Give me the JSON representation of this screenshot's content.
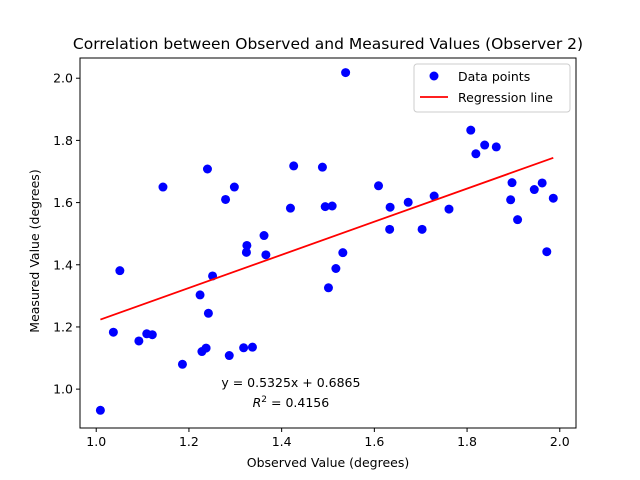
{
  "chart_data": {
    "type": "scatter",
    "title": "Correlation between Observed and Measured Values (Observer 2)",
    "xlabel": "Observed Value (degrees)",
    "ylabel": "Measured Value (degrees)",
    "xlim": [
      0.965,
      2.035
    ],
    "ylim": [
      0.875,
      2.065
    ],
    "xticks": [
      1.0,
      1.2,
      1.4,
      1.6,
      1.8,
      2.0
    ],
    "xtick_labels": [
      "1.0",
      "1.2",
      "1.4",
      "1.6",
      "1.8",
      "2.0"
    ],
    "yticks": [
      1.0,
      1.2,
      1.4,
      1.6,
      1.8,
      2.0
    ],
    "ytick_labels": [
      "1.0",
      "1.2",
      "1.4",
      "1.6",
      "1.8",
      "2.0"
    ],
    "grid": false,
    "legend_position": "top-right",
    "series": [
      {
        "name": "Data points",
        "kind": "scatter",
        "color": "#0000ff",
        "x": [
          1.009,
          1.037,
          1.051,
          1.092,
          1.109,
          1.121,
          1.144,
          1.186,
          1.224,
          1.228,
          1.237,
          1.24,
          1.242,
          1.251,
          1.279,
          1.287,
          1.298,
          1.318,
          1.324,
          1.325,
          1.337,
          1.362,
          1.366,
          1.419,
          1.426,
          1.488,
          1.494,
          1.501,
          1.509,
          1.517,
          1.532,
          1.538,
          1.609,
          1.633,
          1.634,
          1.673,
          1.703,
          1.729,
          1.761,
          1.808,
          1.819,
          1.838,
          1.863,
          1.894,
          1.897,
          1.909,
          1.945,
          1.962,
          1.972,
          1.986
        ],
        "y": [
          0.932,
          1.183,
          1.381,
          1.155,
          1.178,
          1.175,
          1.65,
          1.08,
          1.303,
          1.121,
          1.132,
          1.708,
          1.244,
          1.364,
          1.61,
          1.108,
          1.65,
          1.133,
          1.44,
          1.462,
          1.135,
          1.494,
          1.432,
          1.582,
          1.718,
          1.714,
          1.587,
          1.326,
          1.589,
          1.388,
          1.439,
          2.018,
          1.654,
          1.514,
          1.585,
          1.601,
          1.514,
          1.621,
          1.579,
          1.833,
          1.757,
          1.785,
          1.779,
          1.609,
          1.664,
          1.545,
          1.642,
          1.663,
          1.442,
          1.614
        ]
      },
      {
        "name": "Regression line",
        "kind": "line",
        "color": "#ff0000",
        "slope": 0.5325,
        "intercept": 0.6865,
        "x_range": [
          1.009,
          1.986
        ]
      }
    ],
    "annotations": [
      {
        "text": "y = 0.5325x + 0.6865",
        "x": 1.42,
        "y": 1.02
      },
      {
        "text_prefix": "R",
        "superscript": "2",
        "text_suffix": " = 0.4156",
        "x": 1.42,
        "y": 0.955
      }
    ]
  }
}
